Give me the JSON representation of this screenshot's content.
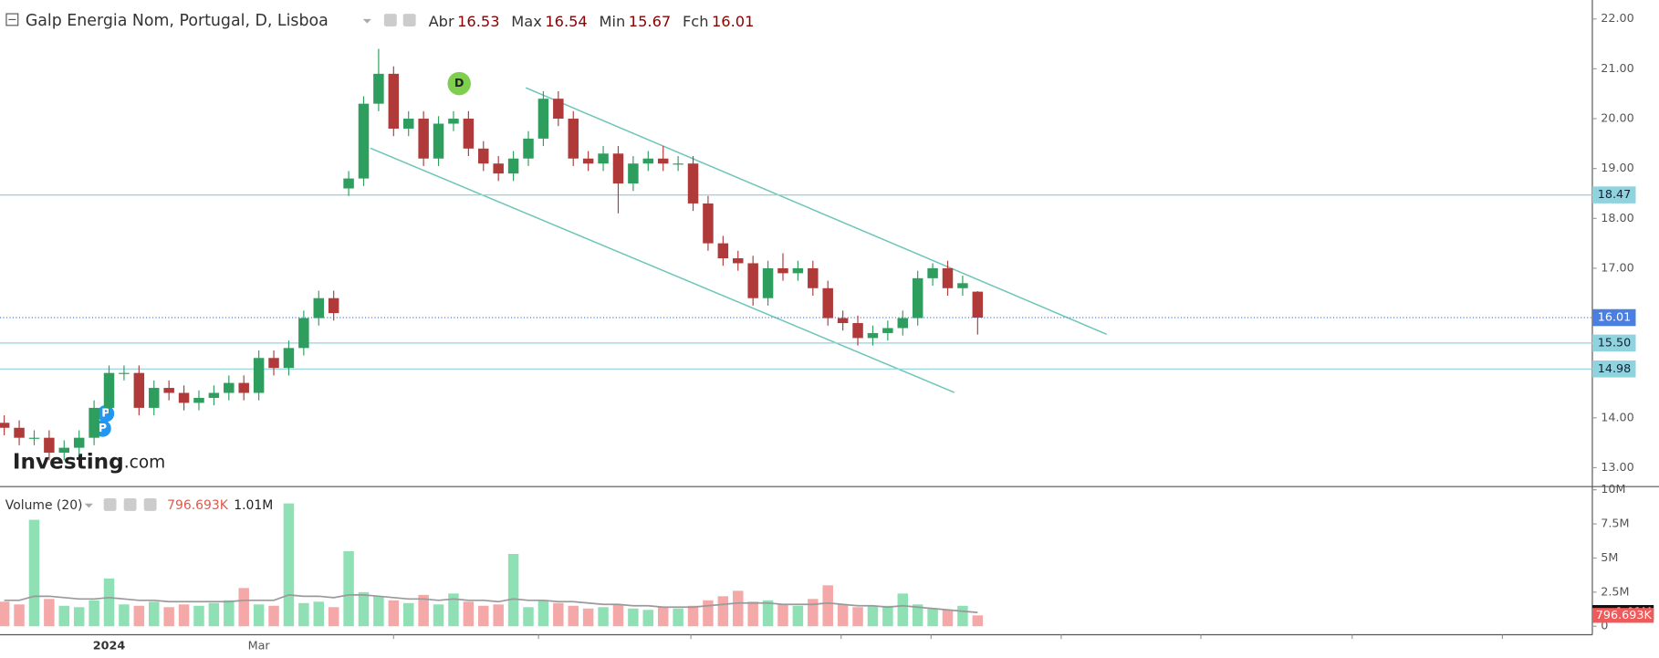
{
  "chart_data": {
    "type": "candlestick",
    "title": "Galp Energia Nom, Portugal, D, Lisboa",
    "ohlc_labels": [
      "Abr",
      "Max",
      "Min",
      "Fch"
    ],
    "categories": [
      null,
      null,
      null,
      null,
      null,
      null,
      null,
      "2024",
      null,
      null,
      null,
      null,
      null,
      null,
      null,
      null,
      null,
      "Mar",
      null,
      null,
      null,
      null,
      null,
      null,
      null,
      null,
      null,
      null,
      null,
      null,
      null,
      null,
      null,
      null,
      null,
      null,
      null,
      null,
      null,
      null,
      null,
      null,
      null,
      null,
      null,
      null,
      null,
      null,
      null,
      null,
      null,
      null,
      null,
      null,
      null,
      null,
      null,
      null,
      null,
      null,
      null,
      null,
      null,
      null,
      null,
      null
    ],
    "open": [
      13.9,
      13.8,
      13.6,
      13.6,
      13.3,
      13.4,
      13.6,
      14.2,
      14.9,
      14.9,
      14.2,
      14.6,
      14.5,
      14.3,
      14.4,
      14.5,
      14.7,
      14.5,
      15.2,
      15.0,
      15.4,
      16.0,
      16.4,
      18.6,
      18.8,
      20.3,
      20.9,
      19.8,
      20.0,
      19.2,
      19.9,
      20.0,
      19.4,
      19.1,
      18.9,
      19.2,
      19.6,
      20.4,
      20.0,
      19.2,
      19.1,
      19.3,
      18.7,
      19.1,
      19.2,
      19.1,
      19.1,
      18.3,
      17.5,
      17.2,
      17.1,
      16.4,
      17.0,
      16.9,
      17.0,
      16.6,
      16.0,
      15.9,
      15.6,
      15.7,
      15.8,
      16.0,
      16.8,
      17.0,
      16.6,
      16.53
    ],
    "high": [
      14.05,
      13.95,
      13.75,
      13.75,
      13.55,
      13.75,
      14.35,
      15.05,
      15.05,
      15.05,
      14.75,
      14.75,
      14.65,
      14.55,
      14.65,
      14.85,
      14.85,
      15.35,
      15.35,
      15.55,
      16.15,
      16.55,
      16.55,
      18.95,
      20.45,
      21.4,
      21.05,
      20.15,
      20.15,
      20.05,
      20.15,
      20.15,
      19.55,
      19.25,
      19.35,
      19.75,
      20.55,
      20.55,
      20.15,
      19.35,
      19.45,
      19.45,
      19.25,
      19.35,
      19.45,
      19.25,
      19.25,
      18.45,
      17.65,
      17.35,
      17.25,
      17.15,
      17.3,
      17.15,
      17.15,
      16.75,
      16.15,
      16.05,
      15.85,
      15.95,
      16.15,
      16.95,
      17.1,
      17.15,
      16.85,
      16.54
    ],
    "low": [
      13.65,
      13.45,
      13.45,
      13.15,
      13.15,
      13.25,
      13.45,
      14.05,
      14.75,
      14.05,
      14.05,
      14.35,
      14.15,
      14.15,
      14.25,
      14.35,
      14.35,
      14.35,
      14.85,
      14.85,
      15.25,
      15.85,
      15.95,
      18.45,
      18.65,
      20.15,
      19.65,
      19.65,
      19.05,
      19.05,
      19.75,
      19.25,
      18.95,
      18.75,
      18.75,
      19.05,
      19.45,
      19.85,
      19.05,
      18.95,
      18.95,
      18.1,
      18.55,
      18.95,
      18.95,
      18.95,
      18.15,
      17.35,
      17.05,
      16.95,
      16.25,
      16.25,
      16.75,
      16.75,
      16.45,
      15.85,
      15.75,
      15.45,
      15.45,
      15.55,
      15.65,
      15.85,
      16.65,
      16.45,
      16.45,
      15.67
    ],
    "close": [
      13.8,
      13.6,
      13.6,
      13.3,
      13.4,
      13.6,
      14.2,
      14.9,
      14.9,
      14.2,
      14.6,
      14.5,
      14.3,
      14.4,
      14.5,
      14.7,
      14.5,
      15.2,
      15.0,
      15.4,
      16.0,
      16.4,
      16.1,
      18.8,
      20.3,
      20.9,
      19.8,
      20.0,
      19.2,
      19.9,
      20.0,
      19.4,
      19.1,
      18.9,
      19.2,
      19.6,
      20.4,
      20.0,
      19.2,
      19.1,
      19.3,
      18.7,
      19.1,
      19.2,
      19.1,
      19.1,
      18.3,
      17.5,
      17.2,
      17.1,
      16.4,
      17.0,
      16.9,
      17.0,
      16.6,
      16.0,
      15.9,
      15.6,
      15.7,
      15.8,
      16.0,
      16.8,
      17.0,
      16.6,
      16.7,
      16.01
    ],
    "up_color": "#2e9e5e",
    "down_color": "#b03a3a",
    "ylim": [
      12.62,
      22.38
    ],
    "yticks": [
      {
        "value": 13,
        "label": "13.00"
      },
      {
        "value": 14,
        "label": "14.00"
      },
      {
        "value": 15,
        "label": "15.00"
      },
      {
        "value": 16,
        "label": "16.00"
      },
      {
        "value": 17,
        "label": "17.00"
      },
      {
        "value": 18,
        "label": "18.00"
      },
      {
        "value": 19,
        "label": "19.00"
      },
      {
        "value": 20,
        "label": "20.00"
      },
      {
        "value": 21,
        "label": "21.00"
      },
      {
        "value": 22,
        "label": "22.00"
      }
    ],
    "levels": [
      {
        "value": 18.47,
        "style": "solid",
        "color": "#8fd3df"
      },
      {
        "value": 16.01,
        "style": "dotted",
        "color": "#4a7fe0"
      },
      {
        "value": 15.5,
        "label": "15.50",
        "style": "solid",
        "color": "#8fd3df"
      },
      {
        "value": 14.98,
        "style": "solid",
        "color": "#8fd3df"
      }
    ],
    "markers": [
      "D",
      "P",
      "P"
    ],
    "watermark": [
      "Investing",
      ".com"
    ],
    "volume_title": "Volume (20)",
    "volume": [
      1.8,
      1.6,
      7.8,
      2.0,
      1.5,
      1.4,
      1.9,
      3.5,
      1.6,
      1.5,
      1.8,
      1.4,
      1.6,
      1.5,
      1.7,
      1.9,
      2.8,
      1.6,
      1.5,
      9.0,
      1.7,
      1.8,
      1.4,
      5.5,
      2.5,
      2.2,
      1.9,
      1.7,
      2.3,
      1.6,
      2.4,
      1.8,
      1.5,
      1.6,
      5.3,
      1.4,
      1.9,
      1.7,
      1.5,
      1.3,
      1.4,
      1.6,
      1.3,
      1.2,
      1.4,
      1.3,
      1.5,
      1.9,
      2.2,
      2.6,
      1.8,
      1.9,
      1.6,
      1.5,
      2.0,
      3.0,
      1.6,
      1.4,
      1.5,
      1.5,
      2.4,
      1.6,
      1.3,
      1.2,
      1.5,
      0.796693
    ],
    "volume_value_labels": {
      "65": "796.693K"
    },
    "volume_ma": [
      1.9,
      1.9,
      2.2,
      2.2,
      2.1,
      2.0,
      2.0,
      2.1,
      2.0,
      1.9,
      1.9,
      1.8,
      1.8,
      1.8,
      1.8,
      1.8,
      1.9,
      1.9,
      1.9,
      2.3,
      2.2,
      2.2,
      2.1,
      2.3,
      2.3,
      2.2,
      2.1,
      2.0,
      2.0,
      1.9,
      2.0,
      1.9,
      1.9,
      1.8,
      2.0,
      1.9,
      1.9,
      1.8,
      1.8,
      1.7,
      1.6,
      1.6,
      1.5,
      1.5,
      1.4,
      1.4,
      1.4,
      1.5,
      1.6,
      1.7,
      1.7,
      1.7,
      1.6,
      1.6,
      1.6,
      1.7,
      1.6,
      1.5,
      1.5,
      1.4,
      1.5,
      1.4,
      1.3,
      1.2,
      1.1,
      1.01
    ],
    "volume_ma_value_labels": {
      "65": "1.01M"
    },
    "volume_ma_color": "#9a9a9a",
    "volume_up_color": "#8fe0b5",
    "volume_down_color": "#f5a8a8",
    "vlim": [
      -0.62,
      10.23
    ],
    "vticks": [
      {
        "value": 0,
        "label": "0"
      },
      {
        "value": 2.5,
        "label": "2.5M"
      },
      {
        "value": 5,
        "label": "5M"
      },
      {
        "value": 7.5,
        "label": "7.5M"
      },
      {
        "value": 10,
        "label": "10M"
      }
    ]
  }
}
